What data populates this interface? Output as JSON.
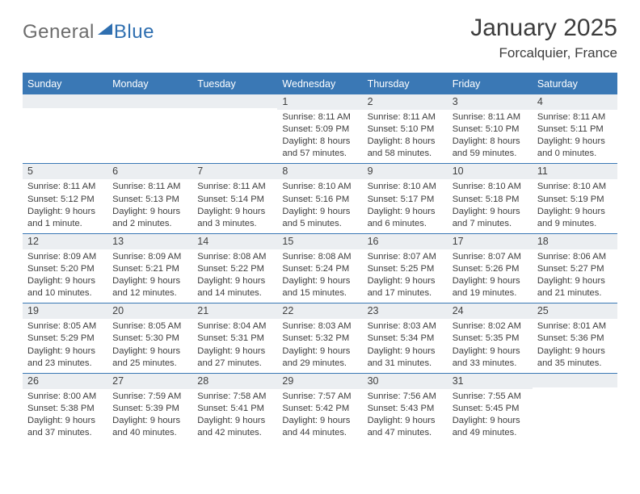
{
  "logo": {
    "part1": "General",
    "part2": "Blue"
  },
  "title": "January 2025",
  "subtitle": "Forcalquier, France",
  "daynames": [
    "Sunday",
    "Monday",
    "Tuesday",
    "Wednesday",
    "Thursday",
    "Friday",
    "Saturday"
  ],
  "colors": {
    "header_blue": "#3a78b5",
    "cell_head_bg": "#ebeef1",
    "text": "#3d3d3d",
    "logo_gray": "#6c6c6c",
    "logo_blue": "#2f6fb0"
  },
  "weeks": [
    [
      {
        "num": "",
        "lines": []
      },
      {
        "num": "",
        "lines": []
      },
      {
        "num": "",
        "lines": []
      },
      {
        "num": "1",
        "lines": [
          "Sunrise: 8:11 AM",
          "Sunset: 5:09 PM",
          "Daylight: 8 hours",
          "and 57 minutes."
        ]
      },
      {
        "num": "2",
        "lines": [
          "Sunrise: 8:11 AM",
          "Sunset: 5:10 PM",
          "Daylight: 8 hours",
          "and 58 minutes."
        ]
      },
      {
        "num": "3",
        "lines": [
          "Sunrise: 8:11 AM",
          "Sunset: 5:10 PM",
          "Daylight: 8 hours",
          "and 59 minutes."
        ]
      },
      {
        "num": "4",
        "lines": [
          "Sunrise: 8:11 AM",
          "Sunset: 5:11 PM",
          "Daylight: 9 hours",
          "and 0 minutes."
        ]
      }
    ],
    [
      {
        "num": "5",
        "lines": [
          "Sunrise: 8:11 AM",
          "Sunset: 5:12 PM",
          "Daylight: 9 hours",
          "and 1 minute."
        ]
      },
      {
        "num": "6",
        "lines": [
          "Sunrise: 8:11 AM",
          "Sunset: 5:13 PM",
          "Daylight: 9 hours",
          "and 2 minutes."
        ]
      },
      {
        "num": "7",
        "lines": [
          "Sunrise: 8:11 AM",
          "Sunset: 5:14 PM",
          "Daylight: 9 hours",
          "and 3 minutes."
        ]
      },
      {
        "num": "8",
        "lines": [
          "Sunrise: 8:10 AM",
          "Sunset: 5:16 PM",
          "Daylight: 9 hours",
          "and 5 minutes."
        ]
      },
      {
        "num": "9",
        "lines": [
          "Sunrise: 8:10 AM",
          "Sunset: 5:17 PM",
          "Daylight: 9 hours",
          "and 6 minutes."
        ]
      },
      {
        "num": "10",
        "lines": [
          "Sunrise: 8:10 AM",
          "Sunset: 5:18 PM",
          "Daylight: 9 hours",
          "and 7 minutes."
        ]
      },
      {
        "num": "11",
        "lines": [
          "Sunrise: 8:10 AM",
          "Sunset: 5:19 PM",
          "Daylight: 9 hours",
          "and 9 minutes."
        ]
      }
    ],
    [
      {
        "num": "12",
        "lines": [
          "Sunrise: 8:09 AM",
          "Sunset: 5:20 PM",
          "Daylight: 9 hours",
          "and 10 minutes."
        ]
      },
      {
        "num": "13",
        "lines": [
          "Sunrise: 8:09 AM",
          "Sunset: 5:21 PM",
          "Daylight: 9 hours",
          "and 12 minutes."
        ]
      },
      {
        "num": "14",
        "lines": [
          "Sunrise: 8:08 AM",
          "Sunset: 5:22 PM",
          "Daylight: 9 hours",
          "and 14 minutes."
        ]
      },
      {
        "num": "15",
        "lines": [
          "Sunrise: 8:08 AM",
          "Sunset: 5:24 PM",
          "Daylight: 9 hours",
          "and 15 minutes."
        ]
      },
      {
        "num": "16",
        "lines": [
          "Sunrise: 8:07 AM",
          "Sunset: 5:25 PM",
          "Daylight: 9 hours",
          "and 17 minutes."
        ]
      },
      {
        "num": "17",
        "lines": [
          "Sunrise: 8:07 AM",
          "Sunset: 5:26 PM",
          "Daylight: 9 hours",
          "and 19 minutes."
        ]
      },
      {
        "num": "18",
        "lines": [
          "Sunrise: 8:06 AM",
          "Sunset: 5:27 PM",
          "Daylight: 9 hours",
          "and 21 minutes."
        ]
      }
    ],
    [
      {
        "num": "19",
        "lines": [
          "Sunrise: 8:05 AM",
          "Sunset: 5:29 PM",
          "Daylight: 9 hours",
          "and 23 minutes."
        ]
      },
      {
        "num": "20",
        "lines": [
          "Sunrise: 8:05 AM",
          "Sunset: 5:30 PM",
          "Daylight: 9 hours",
          "and 25 minutes."
        ]
      },
      {
        "num": "21",
        "lines": [
          "Sunrise: 8:04 AM",
          "Sunset: 5:31 PM",
          "Daylight: 9 hours",
          "and 27 minutes."
        ]
      },
      {
        "num": "22",
        "lines": [
          "Sunrise: 8:03 AM",
          "Sunset: 5:32 PM",
          "Daylight: 9 hours",
          "and 29 minutes."
        ]
      },
      {
        "num": "23",
        "lines": [
          "Sunrise: 8:03 AM",
          "Sunset: 5:34 PM",
          "Daylight: 9 hours",
          "and 31 minutes."
        ]
      },
      {
        "num": "24",
        "lines": [
          "Sunrise: 8:02 AM",
          "Sunset: 5:35 PM",
          "Daylight: 9 hours",
          "and 33 minutes."
        ]
      },
      {
        "num": "25",
        "lines": [
          "Sunrise: 8:01 AM",
          "Sunset: 5:36 PM",
          "Daylight: 9 hours",
          "and 35 minutes."
        ]
      }
    ],
    [
      {
        "num": "26",
        "lines": [
          "Sunrise: 8:00 AM",
          "Sunset: 5:38 PM",
          "Daylight: 9 hours",
          "and 37 minutes."
        ]
      },
      {
        "num": "27",
        "lines": [
          "Sunrise: 7:59 AM",
          "Sunset: 5:39 PM",
          "Daylight: 9 hours",
          "and 40 minutes."
        ]
      },
      {
        "num": "28",
        "lines": [
          "Sunrise: 7:58 AM",
          "Sunset: 5:41 PM",
          "Daylight: 9 hours",
          "and 42 minutes."
        ]
      },
      {
        "num": "29",
        "lines": [
          "Sunrise: 7:57 AM",
          "Sunset: 5:42 PM",
          "Daylight: 9 hours",
          "and 44 minutes."
        ]
      },
      {
        "num": "30",
        "lines": [
          "Sunrise: 7:56 AM",
          "Sunset: 5:43 PM",
          "Daylight: 9 hours",
          "and 47 minutes."
        ]
      },
      {
        "num": "31",
        "lines": [
          "Sunrise: 7:55 AM",
          "Sunset: 5:45 PM",
          "Daylight: 9 hours",
          "and 49 minutes."
        ]
      },
      {
        "num": "",
        "lines": []
      }
    ]
  ]
}
